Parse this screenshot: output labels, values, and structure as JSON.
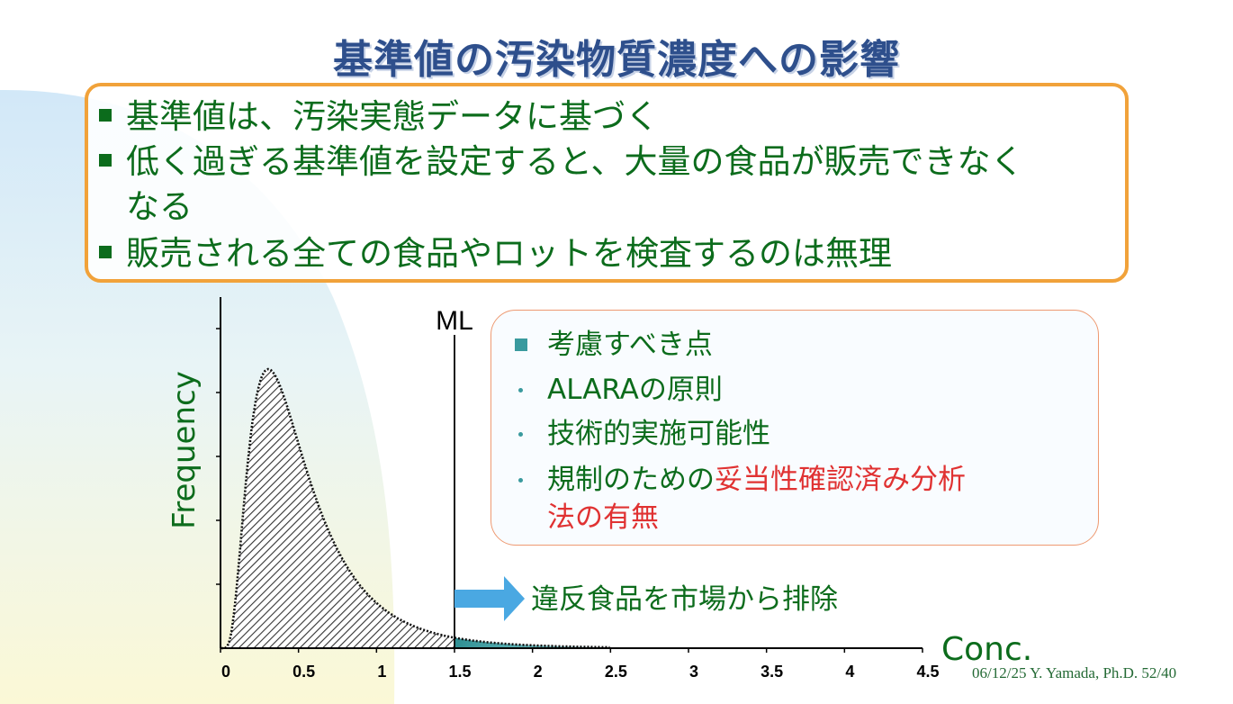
{
  "title": "基準値の汚染物質濃度への影響",
  "top_box": {
    "lines": [
      "基準値は、汚染実態データに基づく",
      "低く過ぎる基準値を設定すると、大量の食品が販売できなく",
      "なる",
      "販売される全ての食品やロットを検査するのは無理"
    ]
  },
  "side_box": {
    "heading": "考慮すべき点",
    "items": [
      "ALARAの原則",
      "技術的実施可能性",
      "規制のための"
    ],
    "item3_red_a": "妥当性確認済み分析",
    "item3_red_b": "法の有無"
  },
  "exclude_label": "違反食品を市場から排除",
  "footer": "06/12/25 Y. Yamada, Ph.D.  52/40",
  "colors": {
    "title": "#2e4f8c",
    "text_green": "#0c6c1c",
    "box_orange": "#f1a23a",
    "accent_teal": "#3a9a9e",
    "arrow_blue": "#4aa8e2",
    "highlight_red": "#e03232"
  },
  "chart_data": {
    "type": "area",
    "ylabel": "Frequency",
    "xlabel": "Conc.",
    "x_ticks": [
      "0",
      "0.5",
      "1",
      "1.5",
      "2",
      "2.5",
      "3",
      "3.5",
      "4",
      "4.5"
    ],
    "xlim": [
      0,
      4.5
    ],
    "curve": "right-skewed distribution peaking near x = 0.3",
    "vline": {
      "label": "ML",
      "x": 1.5
    },
    "shaded_above_ml": true
  }
}
